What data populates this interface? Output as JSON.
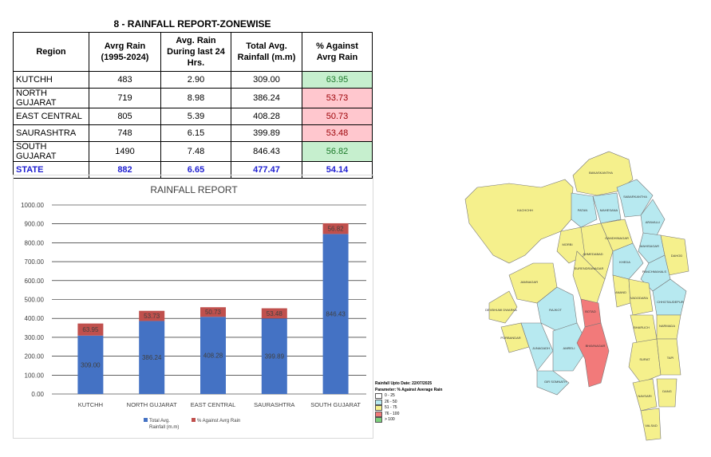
{
  "report": {
    "title": "8 - RAINFALL REPORT-ZONEWISE",
    "headers": {
      "region": "Region",
      "avg_rain_l1": "Avrg Rain",
      "avg_rain_l2": "(1995-2024)",
      "last24_l1": "Avg. Rain",
      "last24_l2": "During last 24",
      "last24_l3": "Hrs.",
      "total_l1": "Total Avg.",
      "total_l2": "Rainfall (m.m)",
      "pct_l1": "% Against",
      "pct_l2": "Avrg Rain"
    },
    "rows": [
      {
        "region": "KUTCHH",
        "avg": "483",
        "last24": "2.90",
        "total": "309.00",
        "pct": "63.95",
        "status": "green"
      },
      {
        "region": "NORTH GUJARAT",
        "avg": "719",
        "last24": "8.98",
        "total": "386.24",
        "pct": "53.73",
        "status": "red"
      },
      {
        "region": "EAST CENTRAL",
        "avg": "805",
        "last24": "5.39",
        "total": "408.28",
        "pct": "50.73",
        "status": "red"
      },
      {
        "region": "SAURASHTRA",
        "avg": "748",
        "last24": "6.15",
        "total": "399.89",
        "pct": "53.48",
        "status": "red"
      },
      {
        "region": "SOUTH GUJARAT",
        "avg": "1490",
        "last24": "7.48",
        "total": "846.43",
        "pct": "56.82",
        "status": "green"
      }
    ],
    "state": {
      "region": "STATE",
      "avg": "882",
      "last24": "6.65",
      "total": "477.47",
      "pct": "54.14"
    }
  },
  "colors": {
    "bar_total": "#4472c4",
    "bar_pct": "#c0504d",
    "cell_green": "#c6efce",
    "cell_red": "#ffc7ce",
    "state_text": "#1f1fd1",
    "map_yellow": "#f5f08c",
    "map_cyan": "#b7e9f0",
    "map_red": "#f27a7a"
  },
  "chart_data": {
    "type": "bar",
    "stacked": true,
    "title": "RAINFALL REPORT",
    "categories": [
      "KUTCHH",
      "NORTH GUJARAT",
      "EAST CENTRAL",
      "SAURASHTRA",
      "SOUTH GUJARAT"
    ],
    "series": [
      {
        "name": "Total Avg. Rainfall (m.m)",
        "name_l1": "Total Avg.",
        "name_l2": "Rainfall (m.m)",
        "values": [
          309.0,
          386.24,
          408.28,
          399.89,
          846.43
        ],
        "labels": [
          "309.00",
          "386.24",
          "408.28",
          "399.89",
          "846.43"
        ]
      },
      {
        "name": "% Against Avrg Rain",
        "values": [
          63.95,
          53.73,
          50.73,
          53.48,
          56.82
        ],
        "labels": [
          "63.95",
          "53.73",
          "50.73",
          "53.48",
          "56.82"
        ]
      }
    ],
    "yticks": [
      "0.00",
      "100.00",
      "200.00",
      "300.00",
      "400.00",
      "500.00",
      "600.00",
      "700.00",
      "800.00",
      "900.00",
      "1000.00"
    ],
    "ylim": [
      0,
      1000
    ],
    "grid": true,
    "legend": "bottom"
  },
  "map_legend": {
    "line1": "Rainfall Upto Date: 22/07/2025",
    "line2": "Parameter: % Against Average Rain",
    "items": [
      {
        "label": "0 - 25",
        "color": "#ffffff"
      },
      {
        "label": "26 - 50",
        "color": "#b7e9f0"
      },
      {
        "label": "51 - 75",
        "color": "#f5f08c"
      },
      {
        "label": "76 - 100",
        "color": "#f27a7a"
      },
      {
        "label": "> 100",
        "color": "#7ccf7c"
      }
    ]
  },
  "map_labels": [
    "KACHCHH",
    "BANASKANTHA",
    "PATAN",
    "MAHESANA",
    "SABARKANTHA",
    "ARAVALLI",
    "GANDHINAGAR",
    "AHMEDABAD",
    "KHEDA",
    "MAHISAGAR",
    "DAHOD",
    "MORBI",
    "SURENDRANAGAR",
    "JAMNAGAR",
    "DEVBHUMI DWARKA",
    "RAJKOT",
    "BOTAD",
    "ANAND",
    "PANCHMAHALS",
    "VADODARA",
    "CHHOTAUDEPUR",
    "BHARUCH",
    "NARMADA",
    "PORBANDAR",
    "JUNAGADH",
    "AMRELI",
    "BHAVNAGAR",
    "GIR SOMNATH",
    "SURAT",
    "TAPI",
    "NAVSARI",
    "DANG",
    "VALSAD"
  ]
}
